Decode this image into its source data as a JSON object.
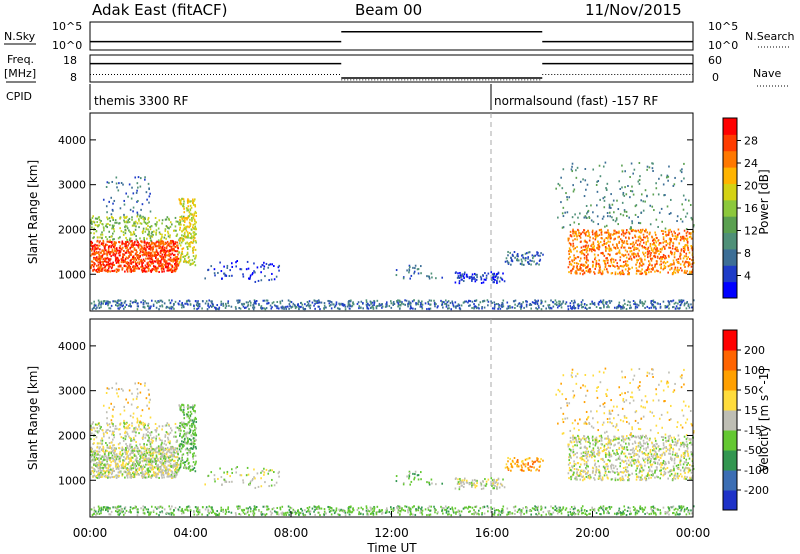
{
  "header": {
    "radar": "Adak East (fitACF)",
    "beam": "Beam 00",
    "date": "11/Nov/2015"
  },
  "panel_labels": {
    "nsky": "N.Sky",
    "freq_top": "Freq.",
    "freq_unit": "[MHz]",
    "cpid": "CPID",
    "nsearch": "N.Search",
    "nave": "Nave",
    "nsky_ticks": [
      "10^5",
      "10^0"
    ],
    "nsearch_ticks": [
      "10^5",
      "10^0"
    ],
    "freq_ticks": [
      "18",
      "8"
    ],
    "nave_ticks": [
      "60",
      "0"
    ]
  },
  "cpid_labels": [
    "themis 3300 RF",
    "normalsound (fast) -157 RF"
  ],
  "chart_data": [
    {
      "type": "heatmap",
      "title": "",
      "ylabel": "Slant Range [km]",
      "xlabel": "",
      "ylim": [
        180,
        4600
      ],
      "yticks": [
        1000,
        2000,
        3000,
        4000
      ],
      "x_hours": [
        0,
        24
      ],
      "colorbar": {
        "label": "Power [dB]",
        "ticks": [
          "28",
          "24",
          "20",
          "16",
          "12",
          "8",
          "4"
        ],
        "colors": [
          "#0000ff",
          "#1e3cc8",
          "#3c6e96",
          "#4f9078",
          "#5aa050",
          "#8cc83c",
          "#d4d214",
          "#ffb400",
          "#ff7800",
          "#ff3c00",
          "#ff0000"
        ]
      }
    },
    {
      "type": "heatmap",
      "title": "",
      "ylabel": "Slant Range [km]",
      "xlabel": "Time UT",
      "ylim": [
        180,
        4600
      ],
      "yticks": [
        1000,
        2000,
        3000,
        4000
      ],
      "xticks": [
        "00:00",
        "04:00",
        "08:00",
        "12:00",
        "16:00",
        "20:00",
        "00:00"
      ],
      "colorbar": {
        "label": "Velocity [m s^-1]",
        "ticks": [
          "200",
          "100",
          "50",
          "15",
          "-15",
          "-50",
          "-100",
          "-200"
        ],
        "colors": [
          "#1e32c8",
          "#3c6eb4",
          "#329650",
          "#64c832",
          "#bebeb4",
          "#ffdc3c",
          "#ffa000",
          "#ff6400",
          "#ff0000"
        ]
      }
    },
    {
      "type": "line",
      "title": "N.Sky / N.Search",
      "x_hours": [
        0,
        3.9,
        4.1,
        10,
        10.1,
        16,
        16.1,
        18,
        18.1,
        24
      ],
      "segments": [
        {
          "start_h": 0,
          "end_h": 10,
          "level": 0.3
        },
        {
          "start_h": 10,
          "end_h": 18,
          "level": 0.65
        },
        {
          "start_h": 18,
          "end_h": 24,
          "level": 0.3
        }
      ]
    },
    {
      "type": "line",
      "title": "Freq. / Nave",
      "segments_freq": [
        {
          "start_h": 0,
          "end_h": 10,
          "level": 0.68
        },
        {
          "start_h": 10,
          "end_h": 18,
          "level": 0.15
        },
        {
          "start_h": 18,
          "end_h": 24,
          "level": 0.68
        }
      ],
      "segments_nave": [
        {
          "start_h": 0,
          "end_h": 10,
          "level": 0.28
        },
        {
          "start_h": 10,
          "end_h": 18,
          "level": 0.08
        },
        {
          "start_h": 18,
          "end_h": 24,
          "level": 0.28
        }
      ]
    }
  ]
}
